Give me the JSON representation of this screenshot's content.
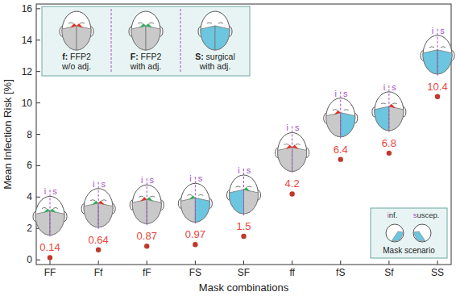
{
  "chart_data": {
    "type": "scatter",
    "y_label": "Mean Infection Risk [%]",
    "x_label": "Mask combinations",
    "categories": [
      "FF",
      "Ff",
      "fF",
      "FS",
      "SF",
      "ff",
      "fS",
      "Sf",
      "SS"
    ],
    "values": [
      0.14,
      0.64,
      0.87,
      0.97,
      1.5,
      4.2,
      6.4,
      6.8,
      10.4
    ],
    "color": "#c0392b",
    "marker": "circle",
    "data_labels": true,
    "ylim": [
      -0.3,
      16.3
    ],
    "yticks": [
      0,
      2,
      4,
      6,
      8,
      10,
      12,
      14,
      16
    ],
    "mask_legend": [
      {
        "code": "f",
        "lines": [
          "f: FFP2",
          "w/o adj."
        ]
      },
      {
        "code": "F",
        "lines": [
          "F: FFP2",
          "with adj."
        ]
      },
      {
        "code": "S",
        "lines": [
          "S: surgical",
          "with adj."
        ]
      }
    ],
    "icon_labels": [
      "i",
      "s"
    ],
    "scenario_inset": {
      "infected": "inf.",
      "susceptible": "suscep.",
      "title": "Mask scenario"
    }
  }
}
